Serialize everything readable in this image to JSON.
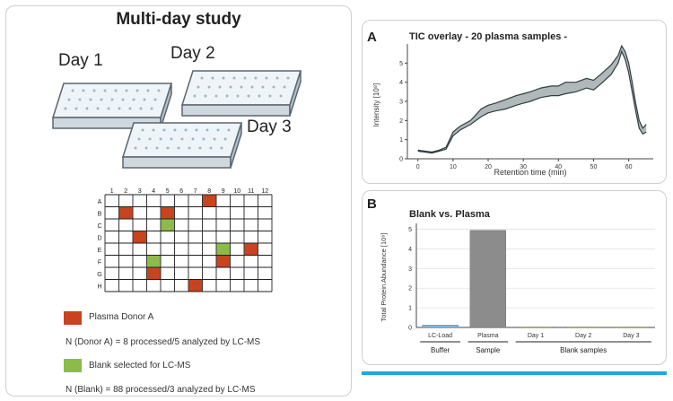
{
  "left_panel": {
    "title": "Multi-day study",
    "days": [
      "Day 1",
      "Day 2",
      "Day 3"
    ],
    "grid": {
      "columns": [
        "1",
        "2",
        "3",
        "4",
        "5",
        "6",
        "7",
        "8",
        "9",
        "10",
        "11",
        "12"
      ],
      "rows": [
        "A",
        "B",
        "C",
        "D",
        "E",
        "F",
        "G",
        "H"
      ],
      "plasma_cells": [
        [
          0,
          7
        ],
        [
          1,
          1
        ],
        [
          1,
          4
        ],
        [
          3,
          2
        ],
        [
          4,
          10
        ],
        [
          5,
          8
        ],
        [
          6,
          3
        ],
        [
          7,
          6
        ]
      ],
      "blank_cells": [
        [
          2,
          4
        ],
        [
          4,
          8
        ],
        [
          5,
          3
        ]
      ]
    },
    "legend": {
      "plasma_label": "Plasma Donor A",
      "plasma_count": "N (Donor A) = 8 processed/5 analyzed by LC-MS",
      "blank_label": "Blank selected for LC-MS",
      "blank_count": "N (Blank) = 88 processed/3 analyzed by LC-MS"
    },
    "colors": {
      "plasma": "#c8431f",
      "blank": "#8cbb49"
    }
  },
  "panel_a": {
    "letter": "A",
    "chart_data": {
      "type": "line",
      "title": "TIC overlay - 20 plasma samples -",
      "xlabel": "Retention time (min)",
      "ylabel": "Intensity [10⁸]",
      "xlim": [
        -3,
        67
      ],
      "ylim": [
        0,
        6
      ],
      "xticks": [
        0,
        10,
        20,
        30,
        40,
        50,
        60
      ],
      "yticks": [
        0,
        1,
        2,
        3,
        4,
        5
      ],
      "series": [
        {
          "x": [
            0,
            2,
            4,
            6,
            8,
            10,
            12,
            15,
            18,
            20,
            22,
            25,
            28,
            30,
            32,
            35,
            38,
            40,
            42,
            45,
            48,
            50,
            52,
            55,
            57,
            58,
            59,
            60,
            61,
            62,
            63,
            64,
            65
          ],
          "y": [
            0.4,
            0.35,
            0.3,
            0.4,
            0.5,
            1.2,
            1.5,
            1.8,
            2.2,
            2.4,
            2.5,
            2.6,
            2.8,
            2.9,
            3.0,
            3.2,
            3.3,
            3.3,
            3.4,
            3.5,
            3.7,
            3.6,
            3.9,
            4.4,
            5.0,
            5.6,
            5.2,
            4.5,
            3.5,
            2.5,
            1.6,
            1.3,
            1.4
          ]
        },
        {
          "x": [
            0,
            2,
            4,
            6,
            8,
            10,
            12,
            15,
            18,
            20,
            22,
            25,
            28,
            30,
            32,
            35,
            38,
            40,
            42,
            45,
            48,
            50,
            52,
            55,
            57,
            58,
            59,
            60,
            61,
            62,
            63,
            64,
            65
          ],
          "y": [
            0.45,
            0.4,
            0.35,
            0.45,
            0.6,
            1.4,
            1.7,
            2.0,
            2.6,
            2.8,
            2.9,
            3.1,
            3.3,
            3.4,
            3.5,
            3.7,
            3.8,
            3.8,
            4.0,
            4.0,
            4.2,
            4.1,
            4.4,
            4.9,
            5.4,
            5.9,
            5.6,
            5.0,
            4.0,
            2.9,
            2.0,
            1.6,
            1.8
          ]
        }
      ]
    }
  },
  "panel_b": {
    "letter": "B",
    "chart_data": {
      "type": "bar",
      "title": "Blank vs. Plasma",
      "ylabel": "Total Protein Abundance [10⁸]",
      "categories": [
        "LC-Load",
        "Plasma",
        "Day 1",
        "Day 2",
        "Day 3"
      ],
      "values": [
        0.12,
        4.95,
        0.03,
        0.03,
        0.03
      ],
      "colors": [
        "#7db9e8",
        "#8c8c8c",
        "#b5d36b",
        "#b5d36b",
        "#b5d36b"
      ],
      "ylim": [
        0,
        5.3
      ],
      "yticks": [
        0,
        1,
        2,
        3,
        4,
        5
      ],
      "groups": [
        {
          "label": "Buffer",
          "categories": [
            0
          ]
        },
        {
          "label": "Sample",
          "categories": [
            1
          ]
        },
        {
          "label": "Blank samples",
          "categories": [
            2,
            3,
            4
          ]
        }
      ],
      "grid": true
    }
  }
}
